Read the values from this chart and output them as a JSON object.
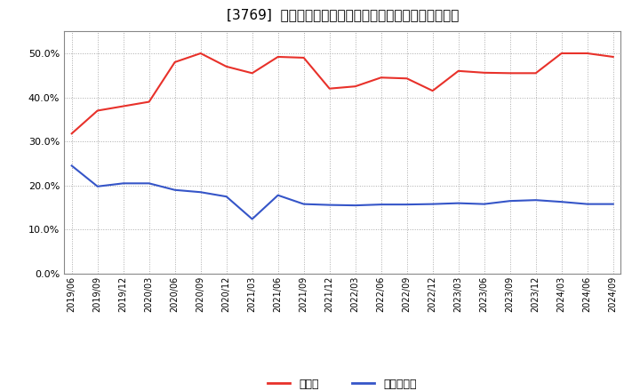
{
  "title": "[3769]  現須金、有利子負債の総資産に対する比率の推移",
  "x_labels": [
    "2019/06",
    "2019/09",
    "2019/12",
    "2020/03",
    "2020/06",
    "2020/09",
    "2020/12",
    "2021/03",
    "2021/06",
    "2021/09",
    "2021/12",
    "2022/03",
    "2022/06",
    "2022/09",
    "2022/12",
    "2023/03",
    "2023/06",
    "2023/09",
    "2023/12",
    "2024/03",
    "2024/06",
    "2024/09"
  ],
  "cash": [
    0.318,
    0.37,
    0.38,
    0.39,
    0.48,
    0.5,
    0.47,
    0.455,
    0.492,
    0.49,
    0.42,
    0.425,
    0.445,
    0.443,
    0.415,
    0.46,
    0.456,
    0.455,
    0.455,
    0.5,
    0.5,
    0.492
  ],
  "debt": [
    0.245,
    0.198,
    0.205,
    0.205,
    0.19,
    0.185,
    0.175,
    0.124,
    0.178,
    0.158,
    0.156,
    0.155,
    0.157,
    0.157,
    0.158,
    0.16,
    0.158,
    0.165,
    0.167,
    0.163,
    0.158,
    0.158
  ],
  "cash_color": "#e8312a",
  "debt_color": "#3555c8",
  "background_color": "#ffffff",
  "grid_color": "#aaaaaa",
  "legend_cash": "現須金",
  "legend_debt": "有利子負債",
  "ylim": [
    0.0,
    0.55
  ],
  "yticks": [
    0.0,
    0.1,
    0.2,
    0.3,
    0.4,
    0.5
  ]
}
